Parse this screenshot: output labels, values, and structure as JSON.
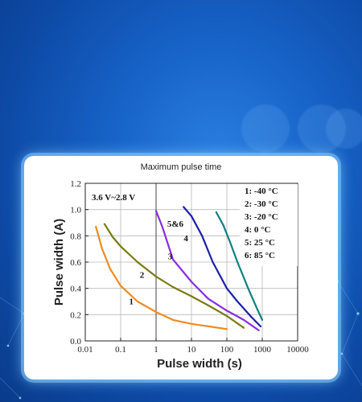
{
  "chart_data": {
    "type": "line",
    "title": "Maximum pulse time",
    "xlabel": "Pulse width (s)",
    "ylabel": "Pulse width (A)",
    "xscale": "log",
    "xlim": [
      0.01,
      10000
    ],
    "ylim": [
      0.0,
      1.2
    ],
    "x_ticks": [
      "0.01",
      "0.1",
      "1",
      "10",
      "100",
      "1000",
      "10000"
    ],
    "y_ticks": [
      "0.0",
      "0.2",
      "0.4",
      "0.6",
      "0.8",
      "1.0",
      "1.2"
    ],
    "grid": true,
    "annotations": [
      "3.6 V~2.8 V",
      "5&6"
    ],
    "legend": [
      "1: -40 °C",
      "2: -30 °C",
      "3: -20 °C",
      "4: 0 °C",
      "5: 25 °C",
      "6: 85 °C"
    ],
    "legend_placement": "top-right",
    "series": [
      {
        "name": "1",
        "color": "#f08a1e",
        "x": [
          0.02,
          0.03,
          0.05,
          0.1,
          0.3,
          1,
          3,
          10,
          100
        ],
        "y": [
          0.87,
          0.7,
          0.55,
          0.42,
          0.3,
          0.22,
          0.16,
          0.13,
          0.09
        ]
      },
      {
        "name": "2",
        "color": "#7a7a10",
        "x": [
          0.035,
          0.06,
          0.1,
          0.3,
          1,
          3,
          10,
          30,
          100,
          300
        ],
        "y": [
          0.89,
          0.79,
          0.72,
          0.6,
          0.49,
          0.41,
          0.34,
          0.27,
          0.19,
          0.1
        ]
      },
      {
        "name": "3",
        "color": "#8a2be2",
        "x": [
          1,
          1.5,
          3,
          10,
          30,
          100,
          300,
          800
        ],
        "y": [
          0.99,
          0.87,
          0.62,
          0.45,
          0.32,
          0.23,
          0.16,
          0.08
        ]
      },
      {
        "name": "4",
        "color": "#1b1fa8",
        "x": [
          6,
          10,
          20,
          40,
          100,
          200,
          500,
          900
        ],
        "y": [
          1.02,
          0.95,
          0.8,
          0.6,
          0.4,
          0.3,
          0.18,
          0.11
        ]
      },
      {
        "name": "5",
        "color": "#0f8080",
        "x": [
          50,
          80,
          120,
          200,
          400,
          700,
          1000
        ],
        "y": [
          0.98,
          0.88,
          0.76,
          0.6,
          0.4,
          0.25,
          0.16
        ]
      }
    ],
    "curve_labels": [
      {
        "text": "1",
        "x": 0.2,
        "y": 0.28
      },
      {
        "text": "2",
        "x": 0.4,
        "y": 0.48
      },
      {
        "text": "3",
        "x": 2.5,
        "y": 0.62
      },
      {
        "text": "4",
        "x": 7,
        "y": 0.76
      },
      {
        "text": "5&6",
        "x": 3.5,
        "y": 0.87
      }
    ]
  }
}
